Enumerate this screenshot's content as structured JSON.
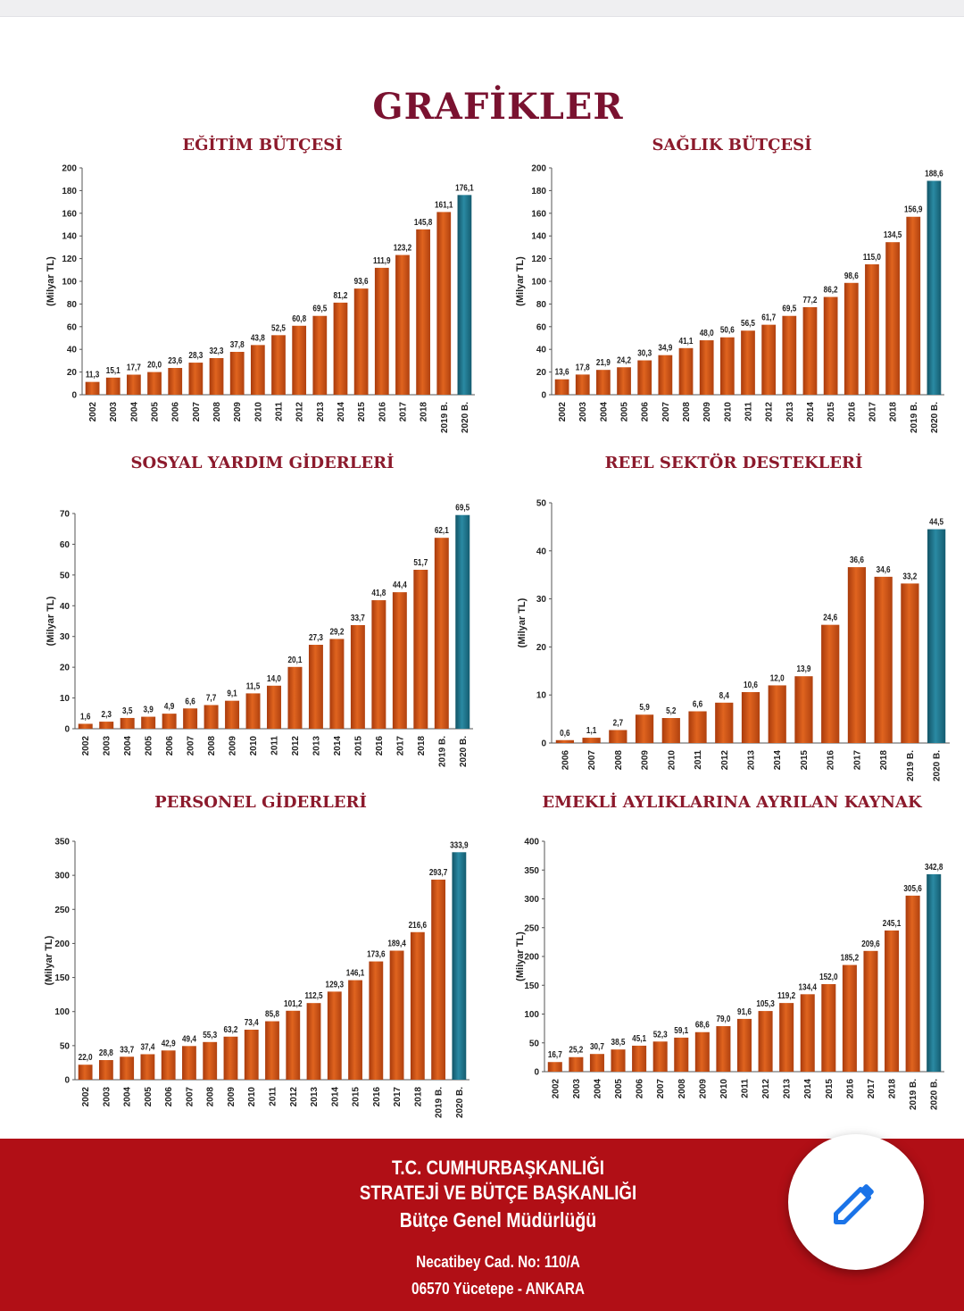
{
  "page_title": "GRAFİKLER",
  "colors": {
    "bar": "#d9561a",
    "bar_highlight": "#1e7a90",
    "title": "#8c1a2c",
    "footer_bg": "#b10f16"
  },
  "footer": {
    "line1": "T.C. CUMHURBAŞKANLIĞI",
    "line2": "STRATEJİ VE BÜTÇE BAŞKANLIĞI",
    "line3": "Bütçe Genel Müdürlüğü",
    "address1": "Necatibey Cad. No: 110/A",
    "address2": "06570 Yücetepe - ANKARA"
  },
  "fab": {
    "icon": "pencil-icon"
  },
  "chart_data": [
    {
      "type": "bar",
      "title": "EĞİTİM BÜTÇESİ",
      "ylabel": "(Milyar TL)",
      "ylim": [
        0,
        200
      ],
      "yticks": [
        0,
        20,
        40,
        60,
        80,
        100,
        120,
        140,
        160,
        180,
        200
      ],
      "categories": [
        "2002",
        "2003",
        "2004",
        "2005",
        "2006",
        "2007",
        "2008",
        "2009",
        "2010",
        "2011",
        "2012",
        "2013",
        "2014",
        "2015",
        "2016",
        "2017",
        "2018",
        "2019 B.",
        "2020 B."
      ],
      "values": [
        11.3,
        15.1,
        17.7,
        20.0,
        23.6,
        28.3,
        32.3,
        37.8,
        43.8,
        52.5,
        60.8,
        69.5,
        81.2,
        93.6,
        111.9,
        123.2,
        145.8,
        161.1,
        176.1
      ],
      "value_labels": [
        "11,3",
        "15,1",
        "17,7",
        "20,0",
        "23,6",
        "28,3",
        "32,3",
        "37,8",
        "43,8",
        "52,5",
        "60,8",
        "69,5",
        "81,2",
        "93,6",
        "111,9",
        "123,2",
        "145,8",
        "161,1",
        "176,1"
      ],
      "highlight_last": true,
      "grid": false
    },
    {
      "type": "bar",
      "title": "SAĞLIK BÜTÇESİ",
      "ylabel": "(Milyar TL)",
      "ylim": [
        0,
        200
      ],
      "yticks": [
        0,
        20,
        40,
        60,
        80,
        100,
        120,
        140,
        160,
        180,
        200
      ],
      "categories": [
        "2002",
        "2003",
        "2004",
        "2005",
        "2006",
        "2007",
        "2008",
        "2009",
        "2010",
        "2011",
        "2012",
        "2013",
        "2014",
        "2015",
        "2016",
        "2017",
        "2018",
        "2019 B.",
        "2020 B."
      ],
      "values": [
        13.6,
        17.8,
        21.9,
        24.2,
        30.3,
        34.9,
        41.1,
        48.0,
        50.6,
        56.5,
        61.7,
        69.5,
        77.2,
        86.2,
        98.6,
        115.0,
        134.5,
        156.9,
        188.6
      ],
      "value_labels": [
        "13,6",
        "17,8",
        "21,9",
        "24,2",
        "30,3",
        "34,9",
        "41,1",
        "48,0",
        "50,6",
        "56,5",
        "61,7",
        "69,5",
        "77,2",
        "86,2",
        "98,6",
        "115,0",
        "134,5",
        "156,9",
        "188,6"
      ],
      "highlight_last": true,
      "grid": false
    },
    {
      "type": "bar",
      "title": "SOSYAL YARDIM GİDERLERİ",
      "ylabel": "(Milyar TL)",
      "ylim": [
        0,
        70
      ],
      "yticks": [
        0,
        10,
        20,
        30,
        40,
        50,
        60,
        70
      ],
      "categories": [
        "2002",
        "2003",
        "2004",
        "2005",
        "2006",
        "2007",
        "2008",
        "2009",
        "2010",
        "2011",
        "2012",
        "2013",
        "2014",
        "2015",
        "2016",
        "2017",
        "2018",
        "2019 B.",
        "2020 B."
      ],
      "values": [
        1.6,
        2.3,
        3.5,
        3.9,
        4.9,
        6.6,
        7.7,
        9.1,
        11.5,
        14.0,
        20.1,
        27.3,
        29.2,
        33.7,
        41.8,
        44.4,
        51.7,
        62.1,
        69.5
      ],
      "value_labels": [
        "1,6",
        "2,3",
        "3,5",
        "3,9",
        "4,9",
        "6,6",
        "7,7",
        "9,1",
        "11,5",
        "14,0",
        "20,1",
        "27,3",
        "29,2",
        "33,7",
        "41,8",
        "44,4",
        "51,7",
        "62,1",
        "69,5"
      ],
      "highlight_last": true,
      "grid": false
    },
    {
      "type": "bar",
      "title": "REEL SEKTÖR DESTEKLERİ",
      "ylabel": "(Milyar TL)",
      "ylim": [
        0,
        50
      ],
      "yticks": [
        0,
        10,
        20,
        30,
        40,
        50
      ],
      "categories": [
        "2006",
        "2007",
        "2008",
        "2009",
        "2010",
        "2011",
        "2012",
        "2013",
        "2014",
        "2015",
        "2016",
        "2017",
        "2018",
        "2019 B.",
        "2020 B."
      ],
      "values": [
        0.6,
        1.1,
        2.7,
        5.9,
        5.2,
        6.6,
        8.4,
        10.6,
        12.0,
        13.9,
        24.6,
        36.6,
        34.6,
        33.2,
        44.5
      ],
      "value_labels": [
        "0,6",
        "1,1",
        "2,7",
        "5,9",
        "5,2",
        "6,6",
        "8,4",
        "10,6",
        "12,0",
        "13,9",
        "24,6",
        "36,6",
        "34,6",
        "33,2",
        "44,5"
      ],
      "highlight_last": true,
      "grid": false
    },
    {
      "type": "bar",
      "title": "PERSONEL GİDERLERİ",
      "ylabel": "(Milyar TL)",
      "ylim": [
        0,
        350
      ],
      "yticks": [
        0,
        50,
        100,
        150,
        200,
        250,
        300,
        350
      ],
      "categories": [
        "2002",
        "2003",
        "2004",
        "2005",
        "2006",
        "2007",
        "2008",
        "2009",
        "2010",
        "2011",
        "2012",
        "2013",
        "2014",
        "2015",
        "2016",
        "2017",
        "2018",
        "2019 B.",
        "2020 B."
      ],
      "values": [
        22.0,
        28.8,
        33.7,
        37.4,
        42.9,
        49.4,
        55.3,
        63.2,
        73.4,
        85.8,
        101.2,
        112.5,
        129.3,
        146.1,
        173.6,
        189.4,
        216.6,
        293.7,
        333.9
      ],
      "value_labels": [
        "22,0",
        "28,8",
        "33,7",
        "37,4",
        "42,9",
        "49,4",
        "55,3",
        "63,2",
        "73,4",
        "85,8",
        "101,2",
        "112,5",
        "129,3",
        "146,1",
        "173,6",
        "189,4",
        "216,6",
        "293,7",
        "333,9"
      ],
      "highlight_last": true,
      "grid": false
    },
    {
      "type": "bar",
      "title": "EMEKLİ AYLIKLARINA AYRILAN KAYNAK",
      "ylabel": "(Milyar TL)",
      "ylim": [
        0,
        400
      ],
      "yticks": [
        0,
        50,
        100,
        150,
        200,
        250,
        300,
        350,
        400
      ],
      "categories": [
        "2002",
        "2003",
        "2004",
        "2005",
        "2006",
        "2007",
        "2008",
        "2009",
        "2010",
        "2011",
        "2012",
        "2013",
        "2014",
        "2015",
        "2016",
        "2017",
        "2018",
        "2019 B.",
        "2020 B."
      ],
      "values": [
        16.7,
        25.2,
        30.7,
        38.5,
        45.1,
        52.3,
        59.1,
        68.6,
        79.0,
        91.6,
        105.3,
        119.2,
        134.4,
        152.0,
        185.2,
        209.6,
        245.1,
        305.6,
        342.8
      ],
      "value_labels": [
        "16,7",
        "25,2",
        "30,7",
        "38,5",
        "45,1",
        "52,3",
        "59,1",
        "68,6",
        "79,0",
        "91,6",
        "105,3",
        "119,2",
        "134,4",
        "152,0",
        "185,2",
        "209,6",
        "245,1",
        "305,6",
        "342,8"
      ],
      "highlight_last": true,
      "grid": false
    }
  ]
}
